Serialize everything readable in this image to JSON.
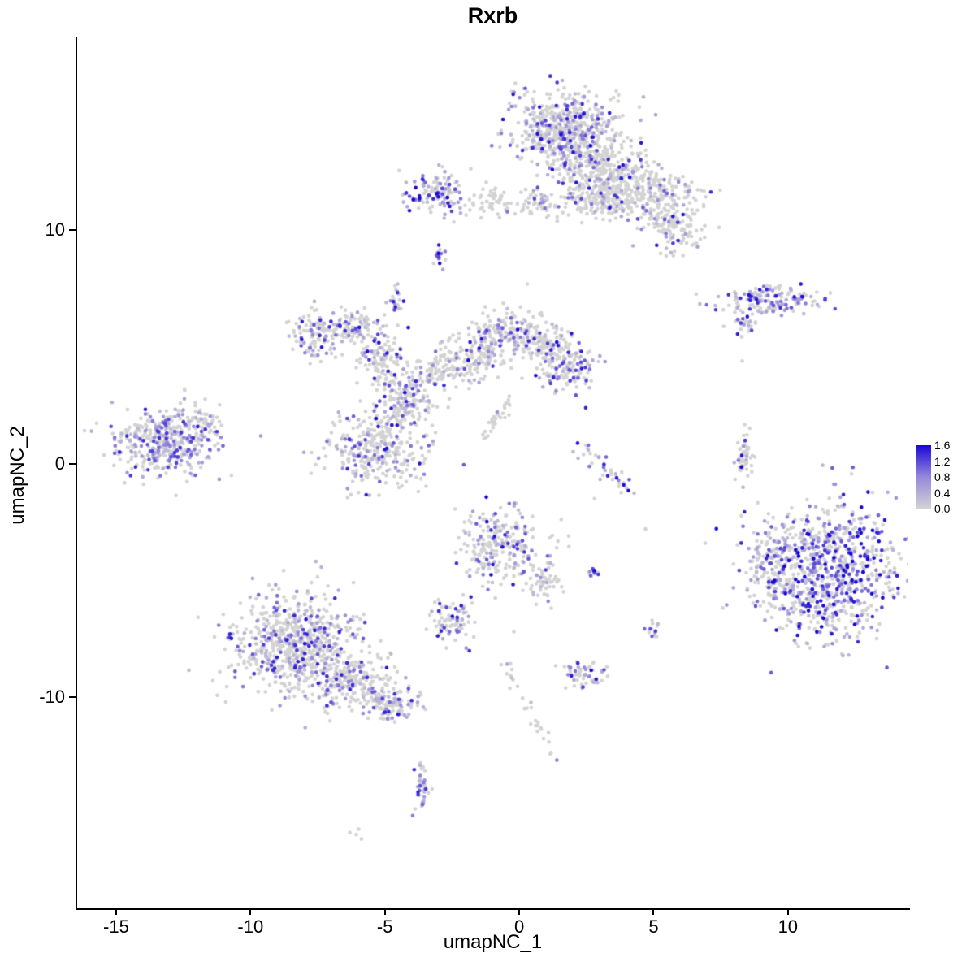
{
  "title": "Rxrb",
  "axes": {
    "x": {
      "label": "umapNC_1",
      "ticks": [
        -15,
        -10,
        -5,
        0,
        5,
        10
      ],
      "range": [
        -16.45,
        14.48
      ]
    },
    "y": {
      "label": "umapNC_2",
      "ticks": [
        10,
        0,
        -10
      ],
      "range": [
        -19.05,
        18.3
      ]
    }
  },
  "legend": {
    "tick_labels": [
      "1.6",
      "1.2",
      "0.8",
      "0.4",
      "0.0"
    ],
    "vmin": 0.0,
    "vmax": 1.6,
    "color_low": "#D3D3D3",
    "color_mid": "#9687DC",
    "color_high": "#1908D7"
  },
  "chart_data": {
    "type": "scatter",
    "title": "Rxrb",
    "xlabel": "umapNC_1",
    "ylabel": "umapNC_2",
    "xlim": [
      -16.45,
      14.48
    ],
    "ylim": [
      -19.05,
      18.3
    ],
    "grid": false,
    "legend_position": "right",
    "colorscale": {
      "low": "#D3D3D3",
      "mid": "#9687DC",
      "high": "#1908D7",
      "vmin": 0.0,
      "vmax": 1.6
    },
    "point_radius_px": 2.3,
    "seed": 123456,
    "cluster_fields": [
      "cx",
      "cy",
      "sx",
      "sy",
      "n",
      "expressed_fraction",
      "intensity_boost"
    ],
    "clusters": [
      [
        1.7,
        14.4,
        1.0,
        0.85,
        550,
        0.35,
        1.0
      ],
      [
        3.0,
        12.7,
        0.8,
        0.6,
        250,
        0.25,
        1.0
      ],
      [
        4.3,
        11.6,
        1.1,
        0.55,
        350,
        0.15,
        1.0
      ],
      [
        5.8,
        10.2,
        0.5,
        0.5,
        120,
        0.2,
        1.0
      ],
      [
        2.7,
        11.3,
        0.5,
        0.35,
        80,
        0.15,
        1.0
      ],
      [
        -3.1,
        11.6,
        0.55,
        0.5,
        130,
        0.45,
        1.1
      ],
      [
        -0.9,
        11.2,
        0.45,
        0.3,
        50,
        0.1,
        1.0
      ],
      [
        0.8,
        11.1,
        0.5,
        0.3,
        60,
        0.2,
        1.0
      ],
      [
        -3.0,
        8.85,
        0.12,
        0.3,
        16,
        0.7,
        1.1
      ],
      [
        -4.6,
        7.1,
        0.15,
        0.3,
        22,
        0.5,
        1.0
      ],
      [
        9.3,
        7.0,
        1.0,
        0.3,
        160,
        0.55,
        1.0
      ],
      [
        8.4,
        6.0,
        0.3,
        0.3,
        30,
        0.2,
        1.0
      ],
      [
        -7.6,
        5.6,
        0.5,
        0.55,
        120,
        0.3,
        1.0
      ],
      [
        -6.2,
        5.9,
        0.5,
        0.4,
        100,
        0.25,
        1.0
      ],
      [
        -5.2,
        4.5,
        0.45,
        0.65,
        120,
        0.2,
        1.0
      ],
      [
        -4.2,
        2.9,
        0.6,
        0.65,
        150,
        0.25,
        1.0
      ],
      [
        -3.1,
        4.1,
        0.4,
        0.4,
        60,
        0.15,
        1.0
      ],
      [
        -1.7,
        4.6,
        0.65,
        0.55,
        140,
        0.2,
        1.0
      ],
      [
        -0.6,
        5.7,
        0.6,
        0.45,
        140,
        0.3,
        1.0
      ],
      [
        0.9,
        5.2,
        0.5,
        0.5,
        110,
        0.2,
        1.0
      ],
      [
        1.7,
        4.2,
        0.6,
        0.55,
        150,
        0.35,
        1.0
      ],
      [
        -13.2,
        0.9,
        0.95,
        0.7,
        420,
        0.4,
        0.9
      ],
      [
        -11.6,
        1.7,
        0.35,
        0.35,
        40,
        0.3,
        0.9
      ],
      [
        -5.3,
        0.6,
        0.95,
        0.8,
        330,
        0.3,
        1.0
      ],
      [
        8.35,
        0.3,
        0.15,
        0.55,
        55,
        0.12,
        1.0
      ],
      [
        11.4,
        -4.7,
        1.35,
        1.45,
        850,
        0.55,
        1.15
      ],
      [
        9.4,
        -4.3,
        0.45,
        0.8,
        120,
        0.35,
        1.0
      ],
      [
        -0.7,
        -3.5,
        0.75,
        0.8,
        240,
        0.35,
        1.0
      ],
      [
        0.9,
        -5.0,
        0.35,
        0.5,
        60,
        0.25,
        1.0
      ],
      [
        2.7,
        -4.7,
        0.12,
        0.15,
        12,
        0.8,
        1.1
      ],
      [
        -2.5,
        -6.8,
        0.4,
        0.5,
        80,
        0.35,
        1.0
      ],
      [
        -8.3,
        -7.7,
        1.2,
        1.1,
        700,
        0.35,
        0.95
      ],
      [
        -6.3,
        -9.3,
        0.8,
        0.6,
        200,
        0.3,
        0.95
      ],
      [
        -4.8,
        -10.2,
        0.5,
        0.4,
        120,
        0.35,
        1.0
      ],
      [
        5.0,
        -7.1,
        0.15,
        0.2,
        14,
        0.5,
        1.0
      ],
      [
        2.4,
        -9.0,
        0.4,
        0.3,
        55,
        0.3,
        1.0
      ],
      [
        -3.6,
        -13.9,
        0.15,
        0.5,
        40,
        0.5,
        1.0
      ],
      [
        -6.0,
        -15.8,
        0.1,
        0.1,
        4,
        0.5,
        1.0
      ]
    ],
    "trail_fields": [
      "x1",
      "y1",
      "x2",
      "y2",
      "n",
      "jitter",
      "expressed_fraction"
    ],
    "trails": [
      [
        -0.6,
        -8.5,
        1.3,
        -12.7,
        28,
        0.15,
        0.1
      ],
      [
        -1.3,
        1.1,
        -0.3,
        2.9,
        30,
        0.12,
        0.05
      ],
      [
        2.3,
        0.6,
        4.3,
        -1.1,
        40,
        0.2,
        0.4
      ],
      [
        -4.3,
        2.3,
        -4.9,
        1.5,
        15,
        0.15,
        0.1
      ]
    ],
    "single_fields": [
      "x",
      "y",
      "value"
    ],
    "singles": [
      [
        4.7,
        -2.8,
        0
      ],
      [
        2.8,
        -1.5,
        0
      ],
      [
        8.3,
        4.4,
        0
      ],
      [
        0.3,
        7.7,
        0
      ],
      [
        -0.2,
        -7.2,
        0
      ],
      [
        6.9,
        9.7,
        0
      ],
      [
        1.4,
        -12.7,
        0.9
      ],
      [
        -3.6,
        -14.6,
        1.0
      ]
    ]
  }
}
